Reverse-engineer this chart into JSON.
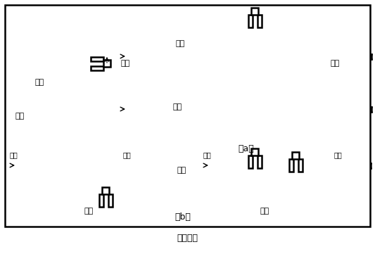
{
  "bg": "#ffffff",
  "lc": "#000000",
  "lw": 1.8,
  "pg": 7,
  "fig_w": 5.33,
  "fig_h": 3.61,
  "font_size": 8,
  "texts": {
    "correct": "正确",
    "wrong": "错误",
    "liquid": "液体",
    "bubble": "气泡",
    "label_a": "（a）",
    "label_b": "（b）",
    "title": "图（四）"
  }
}
